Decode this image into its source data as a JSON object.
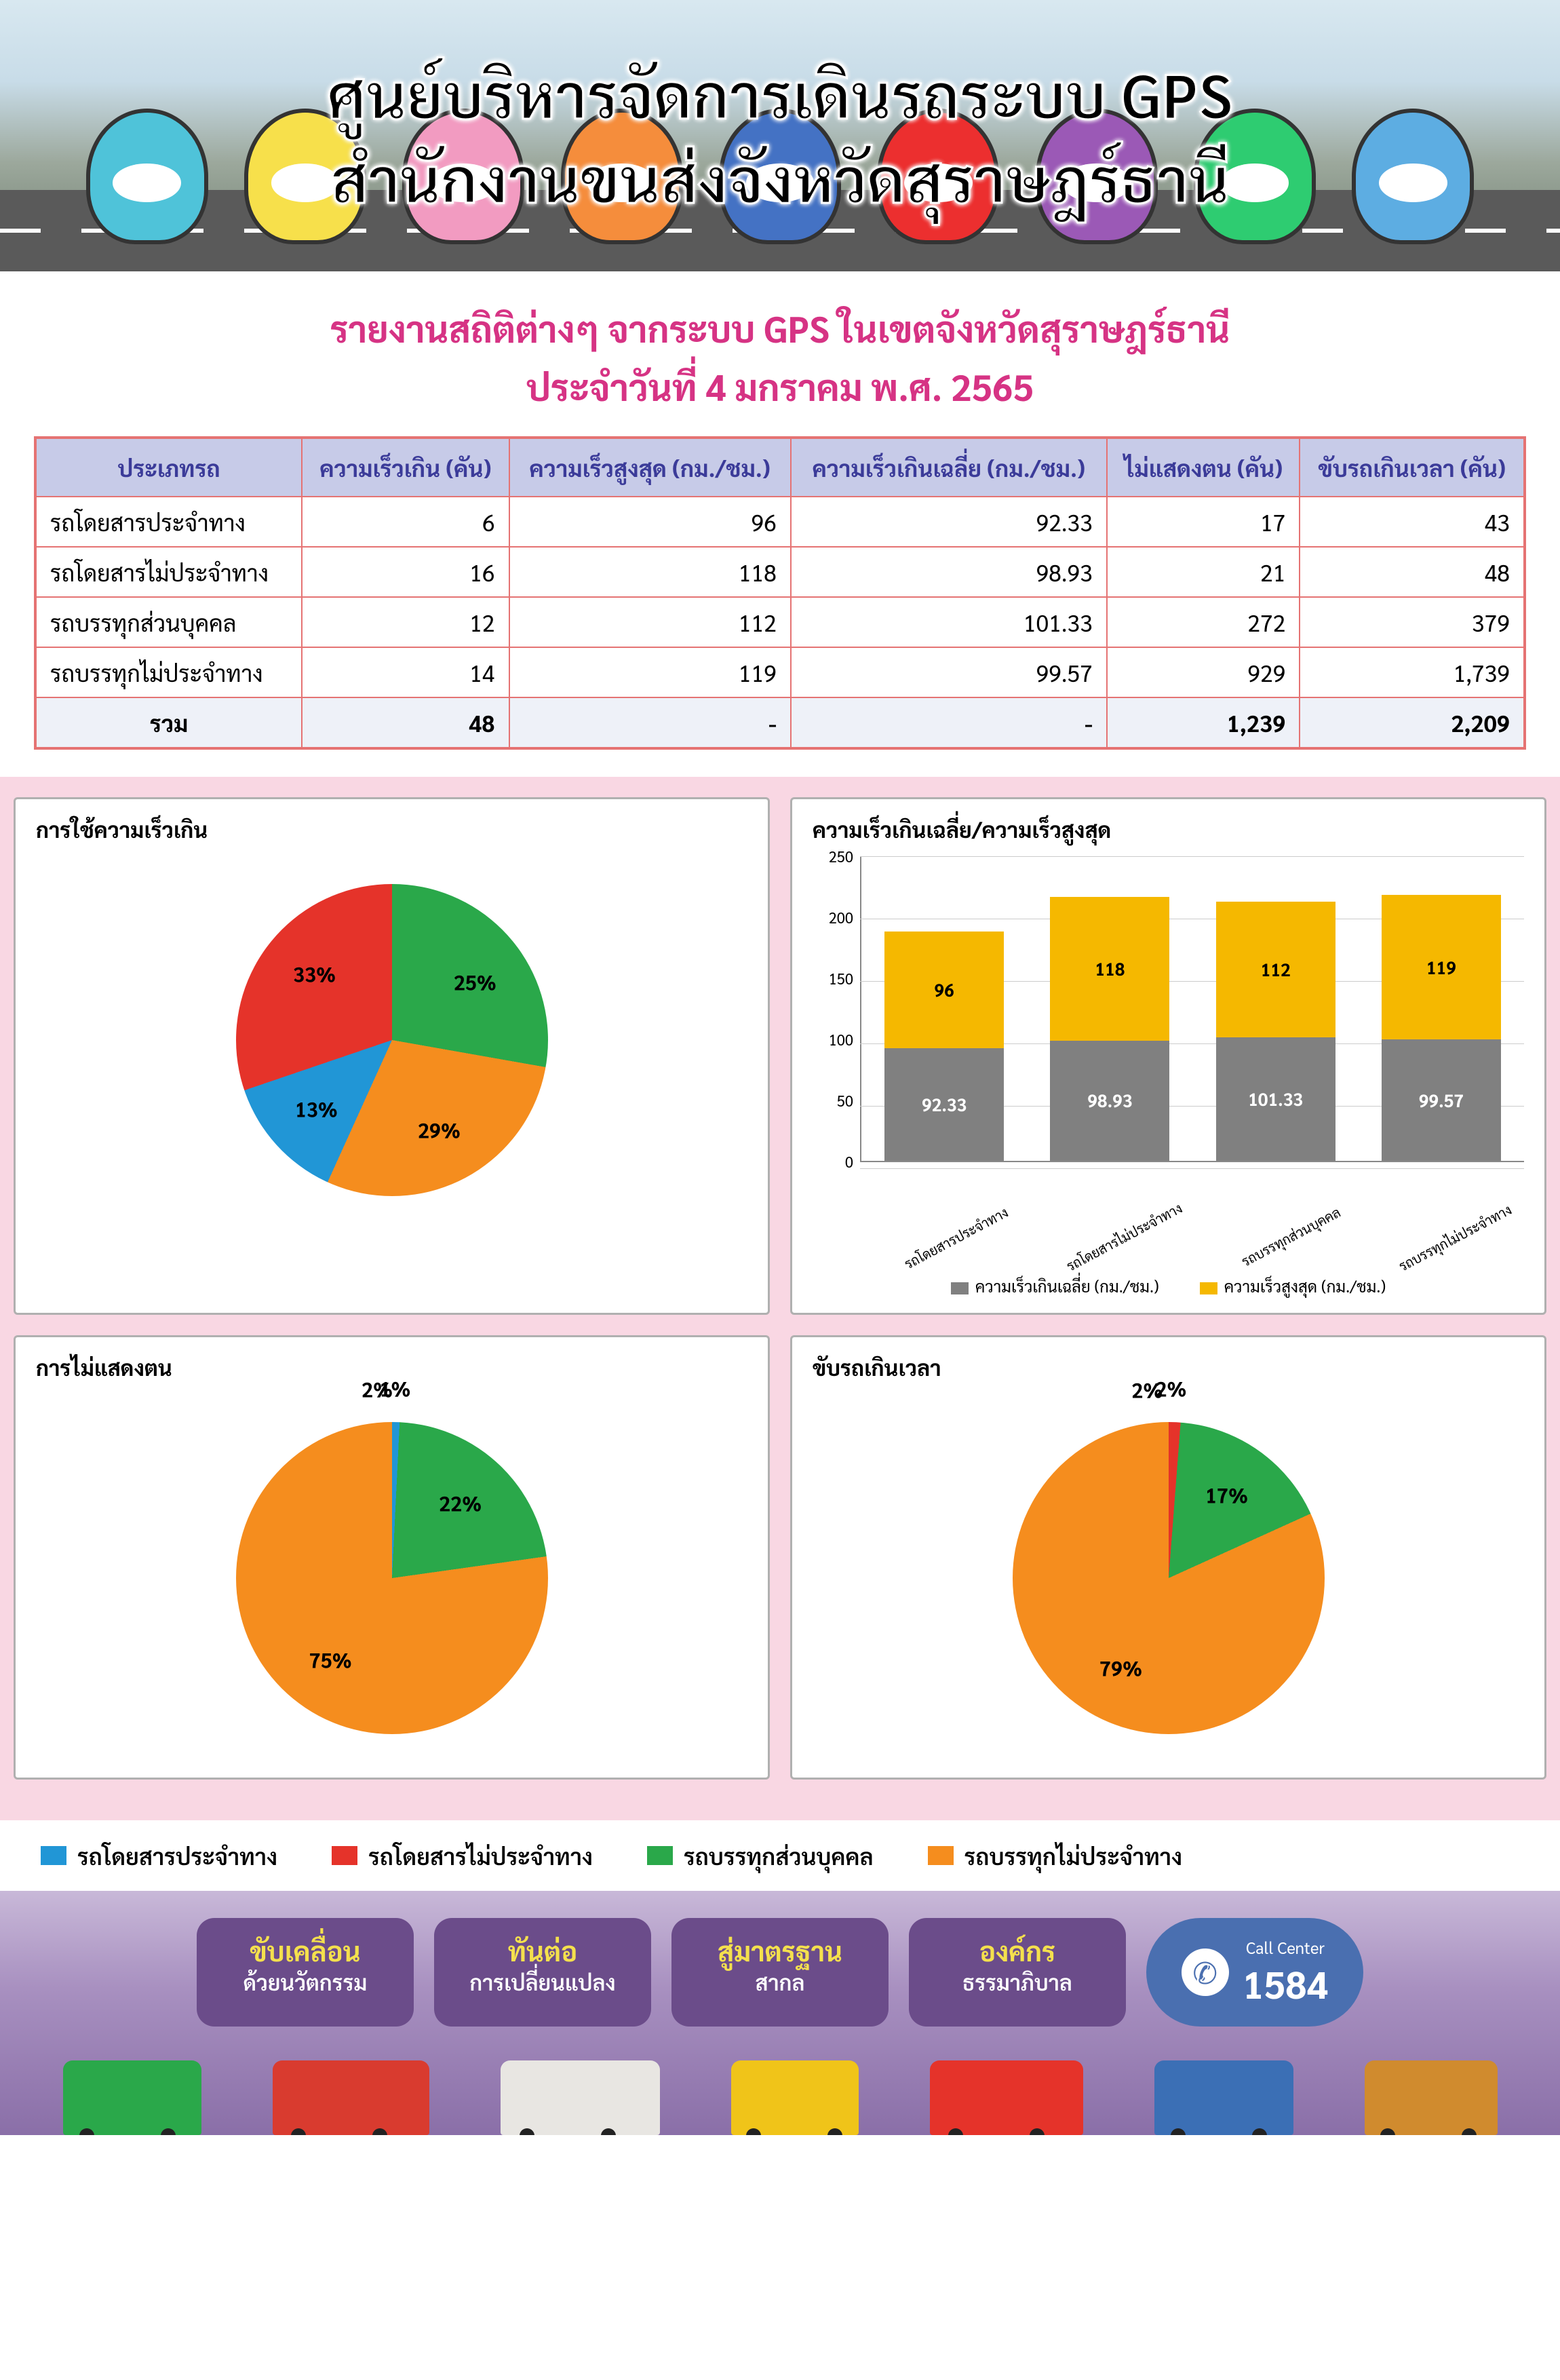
{
  "header": {
    "title_line1": "ศูนย์บริหารจัดการเดินรถระบบ GPS",
    "title_line2": "สำนักงานขนส่งจังหวัดสุราษฎร์ธานี",
    "mascot_colors": [
      "#4fc3d9",
      "#f7e04b",
      "#f29bc1",
      "#f58d3c",
      "#4472c4",
      "#ec2f2f",
      "#9b59b6",
      "#2ecc71",
      "#5dade2"
    ]
  },
  "report": {
    "title_line1": "รายงานสถิติต่างๆ จากระบบ GPS ในเขตจังหวัดสุราษฎร์ธานี",
    "title_line2": "ประจำวันที่ 4 มกราคม พ.ศ. 2565",
    "title_color": "#c2185b"
  },
  "table": {
    "header_bg": "#c7cbe8",
    "header_fg": "#2a2a8a",
    "border_color": "#e57373",
    "total_bg": "#eef1f8",
    "columns": [
      "ประเภทรถ",
      "ความเร็วเกิน (คัน)",
      "ความเร็วสูงสุด (กม./ชม.)",
      "ความเร็วเกินเฉลี่ย (กม./ชม.)",
      "ไม่แสดงตน (คัน)",
      "ขับรถเกินเวลา (คัน)"
    ],
    "rows": [
      [
        "รถโดยสารประจำทาง",
        "6",
        "96",
        "92.33",
        "17",
        "43"
      ],
      [
        "รถโดยสารไม่ประจำทาง",
        "16",
        "118",
        "98.93",
        "21",
        "48"
      ],
      [
        "รถบรรทุกส่วนบุคคล",
        "12",
        "112",
        "101.33",
        "272",
        "379"
      ],
      [
        "รถบรรทุกไม่ประจำทาง",
        "14",
        "119",
        "99.57",
        "929",
        "1,739"
      ]
    ],
    "total_row": [
      "รวม",
      "48",
      "-",
      "-",
      "1,239",
      "2,209"
    ]
  },
  "palette": {
    "series": [
      "#2196d6",
      "#e5332a",
      "#2aa84a",
      "#f58d1e"
    ],
    "labels": [
      "รถโดยสารประจำทาง",
      "รถโดยสารไม่ประจำทาง",
      "รถบรรทุกส่วนบุคคล",
      "รถบรรทุกไม่ประจำทาง"
    ]
  },
  "charts": {
    "bg": "#f9d7e3",
    "box_border": "#b0b0b0",
    "pie_speed": {
      "title": "การใช้ความเร็วเกิน",
      "values": [
        13,
        33,
        25,
        29
      ],
      "labels_pct": [
        "13%",
        "33%",
        "25%",
        "29%"
      ],
      "label_colors": [
        "#000000",
        "#000000",
        "#000000",
        "#000000"
      ]
    },
    "bar_speed": {
      "title": "ความเร็วเกินเฉลี่ย/ความเร็วสูงสุด",
      "type": "stacked-bar",
      "categories": [
        "รถโดยสารประจำทาง",
        "รถโดยสารไม่ประจำทาง",
        "รถบรรทุกส่วนบุคคล",
        "รถบรรทุกไม่ประจำทาง"
      ],
      "series": [
        {
          "name": "ความเร็วเกินเฉลี่ย (กม./ชม.)",
          "color": "#808080",
          "values": [
            92.33,
            98.93,
            101.33,
            99.57
          ],
          "value_labels": [
            "92.33",
            "98.93",
            "101.33",
            "99.57"
          ]
        },
        {
          "name": "ความเร็วสูงสุด (กม./ชม.)",
          "color": "#f5b800",
          "values": [
            96,
            118,
            112,
            119
          ],
          "value_labels": [
            "96",
            "118",
            "112",
            "119"
          ]
        }
      ],
      "y_ticks": [
        0,
        50,
        100,
        150,
        200,
        250
      ],
      "y_max": 250,
      "label_fontsize": 22
    },
    "pie_no_show": {
      "title": "การไม่แสดงตน",
      "values": [
        1,
        2,
        22,
        75
      ],
      "labels_pct": [
        "1%",
        "2%",
        "22%",
        "75%"
      ]
    },
    "pie_overtime": {
      "title": "ขับรถเกินเวลา",
      "values": [
        2,
        2,
        17,
        79
      ],
      "labels_pct": [
        "2%",
        "2%",
        "17%",
        "79%"
      ]
    }
  },
  "footer": {
    "bg_gradient": [
      "#c8b8d8",
      "#8a6fa8"
    ],
    "pills": [
      {
        "line1": "ขับเคลื่อน",
        "line2": "ด้วยนวัตกรรม"
      },
      {
        "line1": "ทันต่อ",
        "line2": "การเปลี่ยนแปลง"
      },
      {
        "line1": "สู่มาตรฐาน",
        "line2": "สากล"
      },
      {
        "line1": "องค์กร",
        "line2": "ธรรมาภิบาล"
      }
    ],
    "pill_bg": "#6b4c8a",
    "pill_line1_color": "#f4e04d",
    "call_center": {
      "label": "Call Center",
      "number": "1584",
      "bg": "#4a6fb0"
    },
    "vehicle_colors": [
      "#2aa84a",
      "#d93b2f",
      "#e8e6e2",
      "#f0c419",
      "#e5332a",
      "#3b6fb5",
      "#d08b2e"
    ]
  }
}
